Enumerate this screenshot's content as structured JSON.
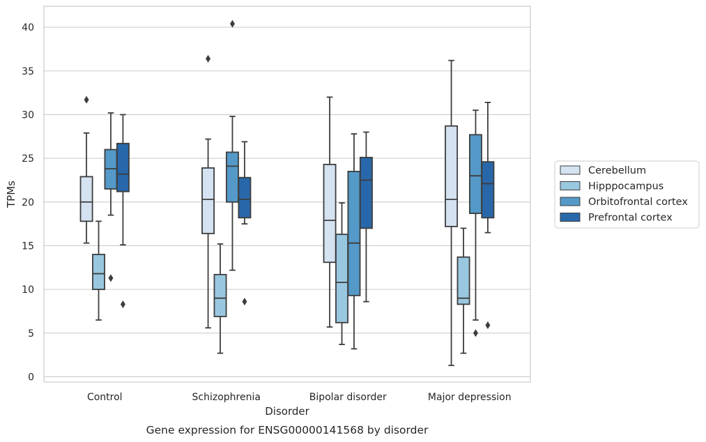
{
  "chart_data": {
    "type": "box",
    "title": "",
    "caption": "Gene expression for ENSG00000141568 by disorder",
    "xlabel": "Disorder",
    "ylabel": "TPMs",
    "ylim": [
      -0.6,
      42.4
    ],
    "yticks": [
      0,
      5,
      10,
      15,
      20,
      25,
      30,
      35,
      40
    ],
    "grid": "horizontal",
    "legend_position": "right",
    "categories": [
      "Control",
      "Schizophrenia",
      "Bipolar disorder",
      "Major depression"
    ],
    "series": [
      {
        "name": "Cerebellum",
        "color": "#d4e2f1",
        "boxes": [
          {
            "whislo": 15.3,
            "q1": 17.8,
            "med": 20.0,
            "q3": 22.9,
            "whishi": 27.9,
            "fliers": [
              31.7
            ]
          },
          {
            "whislo": 5.6,
            "q1": 16.4,
            "med": 20.3,
            "q3": 23.9,
            "whishi": 27.2,
            "fliers": [
              36.4
            ]
          },
          {
            "whislo": 5.7,
            "q1": 13.1,
            "med": 17.9,
            "q3": 24.3,
            "whishi": 32.0,
            "fliers": []
          },
          {
            "whislo": 1.3,
            "q1": 17.2,
            "med": 20.3,
            "q3": 28.7,
            "whishi": 36.2,
            "fliers": []
          }
        ]
      },
      {
        "name": "Hipppocampus",
        "color": "#9ac7e0",
        "boxes": [
          {
            "whislo": 6.5,
            "q1": 10.0,
            "med": 11.8,
            "q3": 14.0,
            "whishi": 17.8,
            "fliers": []
          },
          {
            "whislo": 2.7,
            "q1": 6.9,
            "med": 9.0,
            "q3": 11.7,
            "whishi": 15.2,
            "fliers": []
          },
          {
            "whislo": 3.7,
            "q1": 6.2,
            "med": 10.8,
            "q3": 16.3,
            "whishi": 19.9,
            "fliers": []
          },
          {
            "whislo": 2.7,
            "q1": 8.3,
            "med": 9.0,
            "q3": 13.7,
            "whishi": 17.0,
            "fliers": []
          }
        ]
      },
      {
        "name": "Orbitofrontal cortex",
        "color": "#5499c8",
        "boxes": [
          {
            "whislo": 18.5,
            "q1": 21.5,
            "med": 23.8,
            "q3": 26.0,
            "whishi": 30.2,
            "fliers": [
              11.3
            ]
          },
          {
            "whislo": 12.2,
            "q1": 20.0,
            "med": 24.1,
            "q3": 25.7,
            "whishi": 29.8,
            "fliers": [
              40.4
            ]
          },
          {
            "whislo": 3.2,
            "q1": 9.3,
            "med": 15.3,
            "q3": 23.5,
            "whishi": 27.8,
            "fliers": []
          },
          {
            "whislo": 6.5,
            "q1": 18.7,
            "med": 23.0,
            "q3": 27.7,
            "whishi": 30.5,
            "fliers": [
              5.0
            ]
          }
        ]
      },
      {
        "name": "Prefrontal cortex",
        "color": "#2868aa",
        "boxes": [
          {
            "whislo": 15.1,
            "q1": 21.2,
            "med": 23.2,
            "q3": 26.7,
            "whishi": 30.0,
            "fliers": [
              8.3
            ]
          },
          {
            "whislo": 17.5,
            "q1": 18.2,
            "med": 20.3,
            "q3": 22.8,
            "whishi": 26.9,
            "fliers": [
              8.6
            ]
          },
          {
            "whislo": 8.6,
            "q1": 17.0,
            "med": 22.5,
            "q3": 25.1,
            "whishi": 28.0,
            "fliers": []
          },
          {
            "whislo": 16.5,
            "q1": 18.2,
            "med": 22.1,
            "q3": 24.6,
            "whishi": 31.4,
            "fliers": [
              5.9
            ]
          }
        ]
      }
    ]
  }
}
